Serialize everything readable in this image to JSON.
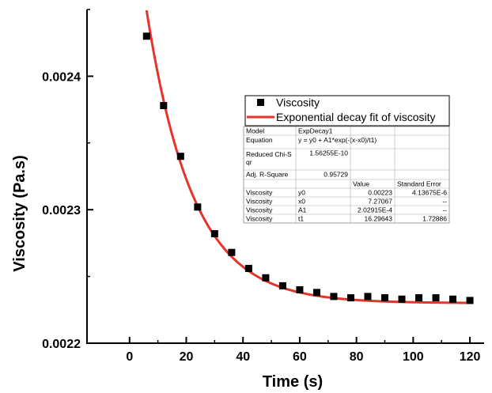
{
  "chart_data": {
    "type": "scatter",
    "xlabel": "Time (s)",
    "ylabel": "Viscosity (Pa.s)",
    "xlim": [
      -15,
      125
    ],
    "ylim": [
      0.0022,
      0.00245
    ],
    "xticks": [
      0,
      20,
      40,
      60,
      80,
      100,
      120
    ],
    "xtick_labels": [
      "0",
      "20",
      "40",
      "60",
      "80",
      "100",
      "120"
    ],
    "yticks": [
      0.0022,
      0.0023,
      0.0024
    ],
    "ytick_labels": [
      "0.0022",
      "0.0023",
      "0.0024"
    ],
    "grid": false,
    "legend_placement": "right",
    "series": [
      {
        "name": "Viscosity",
        "kind": "points",
        "color": "#000000",
        "x": [
          6,
          12,
          18,
          24,
          30,
          36,
          42,
          48,
          54,
          60,
          66,
          72,
          78,
          84,
          90,
          96,
          102,
          108,
          114,
          120
        ],
        "y": [
          0.00243,
          0.002378,
          0.00234,
          0.002302,
          0.002282,
          0.002268,
          0.002256,
          0.002249,
          0.002243,
          0.00224,
          0.002238,
          0.002235,
          0.002234,
          0.002235,
          0.002234,
          0.002233,
          0.002234,
          0.002234,
          0.002233,
          0.002232
        ]
      },
      {
        "name": "Exponential decay fit of viscosity",
        "kind": "fit",
        "color": "#e8332a",
        "model": {
          "y0": 0.00223,
          "x0": 7.27067,
          "A1": 0.000202915,
          "t1": 16.29643
        },
        "x_range": [
          6,
          120
        ]
      }
    ],
    "fit_table": {
      "rows": [
        [
          "Model",
          "ExpDecay1",
          "",
          ""
        ],
        [
          "Equation",
          "y = y0 + A1*exp(-(x-x0)/t1)",
          "",
          ""
        ],
        [
          "Reduced Chi-Sqr",
          "1.56255E-10",
          "",
          ""
        ],
        [
          "Adj. R-Square",
          "0.95729",
          "",
          ""
        ],
        [
          "",
          "",
          "Value",
          "Standard Error"
        ],
        [
          "Viscosity",
          "y0",
          "0.00223",
          "4.13675E-6"
        ],
        [
          "Viscosity",
          "x0",
          "7.27067",
          "--"
        ],
        [
          "Viscosity",
          "A1",
          "2.02915E-4",
          "--"
        ],
        [
          "Viscosity",
          "t1",
          "16.29643",
          "1.72886"
        ]
      ]
    }
  }
}
